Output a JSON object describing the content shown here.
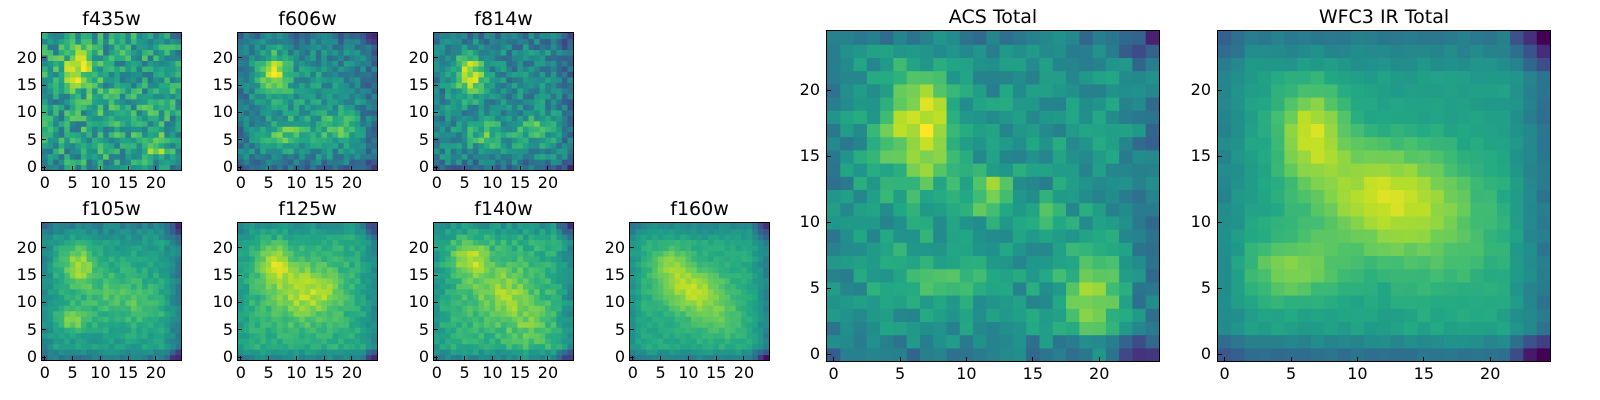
{
  "chart_data": [
    {
      "type": "heatmap",
      "title": "f435w",
      "xticks": [
        0,
        5,
        10,
        15,
        20
      ],
      "yticks": [
        0,
        5,
        10,
        15,
        20
      ],
      "xlim": [
        0,
        25
      ],
      "ylim": [
        0,
        25
      ],
      "colormap": "viridis"
    },
    {
      "type": "heatmap",
      "title": "f606w",
      "xticks": [
        0,
        5,
        10,
        15,
        20
      ],
      "yticks": [
        0,
        5,
        10,
        15,
        20
      ],
      "xlim": [
        0,
        25
      ],
      "ylim": [
        0,
        25
      ],
      "colormap": "viridis"
    },
    {
      "type": "heatmap",
      "title": "f814w",
      "xticks": [
        0,
        5,
        10,
        15,
        20
      ],
      "yticks": [
        0,
        5,
        10,
        15,
        20
      ],
      "xlim": [
        0,
        25
      ],
      "ylim": [
        0,
        25
      ],
      "colormap": "viridis"
    },
    {
      "type": "heatmap",
      "title": "f105w",
      "xticks": [
        0,
        5,
        10,
        15,
        20
      ],
      "yticks": [
        0,
        5,
        10,
        15,
        20
      ],
      "xlim": [
        0,
        25
      ],
      "ylim": [
        0,
        25
      ],
      "colormap": "viridis"
    },
    {
      "type": "heatmap",
      "title": "f125w",
      "xticks": [
        0,
        5,
        10,
        15,
        20
      ],
      "yticks": [
        0,
        5,
        10,
        15,
        20
      ],
      "xlim": [
        0,
        25
      ],
      "ylim": [
        0,
        25
      ],
      "colormap": "viridis"
    },
    {
      "type": "heatmap",
      "title": "f140w",
      "xticks": [
        0,
        5,
        10,
        15,
        20
      ],
      "yticks": [
        0,
        5,
        10,
        15,
        20
      ],
      "xlim": [
        0,
        25
      ],
      "ylim": [
        0,
        25
      ],
      "colormap": "viridis"
    },
    {
      "type": "heatmap",
      "title": "f160w",
      "xticks": [
        0,
        5,
        10,
        15,
        20
      ],
      "yticks": [
        0,
        5,
        10,
        15,
        20
      ],
      "xlim": [
        0,
        25
      ],
      "ylim": [
        0,
        25
      ],
      "colormap": "viridis"
    },
    {
      "type": "heatmap",
      "title": "ACS Total",
      "xticks": [
        0,
        5,
        10,
        15,
        20
      ],
      "yticks": [
        0,
        5,
        10,
        15,
        20
      ],
      "xlim": [
        0,
        25
      ],
      "ylim": [
        0,
        25
      ],
      "colormap": "viridis"
    },
    {
      "type": "heatmap",
      "title": "WFC3 IR Total",
      "xticks": [
        0,
        5,
        10,
        15,
        20
      ],
      "yticks": [
        0,
        5,
        10,
        15,
        20
      ],
      "xlim": [
        0,
        25
      ],
      "ylim": [
        0,
        25
      ],
      "colormap": "viridis"
    }
  ]
}
